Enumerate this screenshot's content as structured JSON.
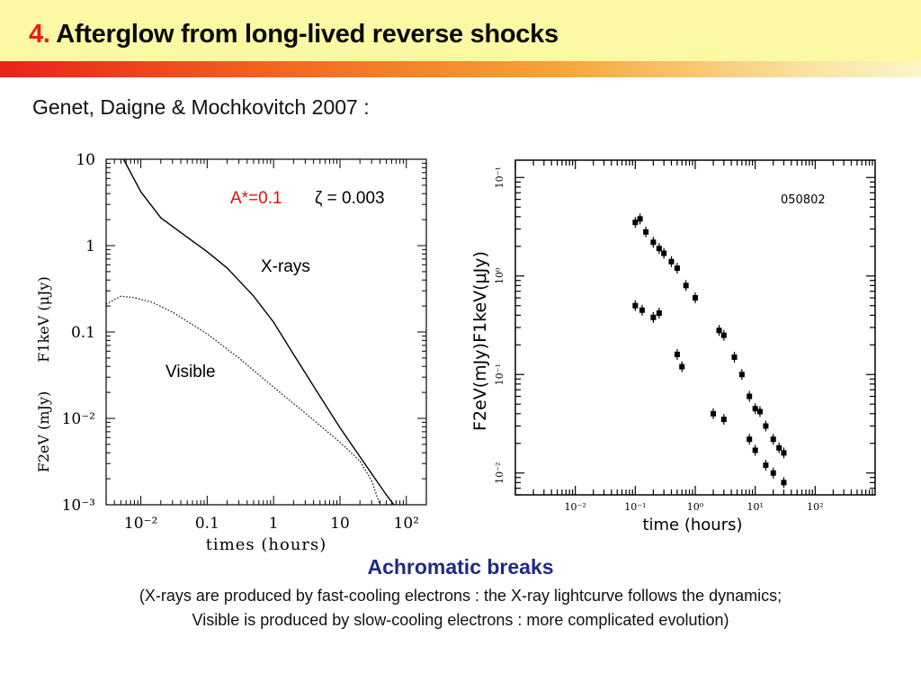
{
  "slide": {
    "title_number": "4.",
    "title_text": "Afterglow from long-lived reverse shocks",
    "citation": "Genet, Daigne & Mochkovitch 2007 :",
    "caption_title": "Achromatic breaks",
    "caption_line1": "(X-rays are produced by fast-cooling electrons : the X-ray lightcurve follows the dynamics;",
    "caption_line2": "Visible is produced by slow-cooling electrons : more complicated evolution)"
  },
  "colors": {
    "title_number": "#e81d1d",
    "header_bg": "#fbf9a4",
    "caption_title": "#1d2a86",
    "annotation_red": "#e01010"
  },
  "chart_data": [
    {
      "type": "line",
      "xscale": "log",
      "yscale": "log",
      "xlim": [
        0.003,
        200
      ],
      "ylim": [
        0.001,
        10
      ],
      "xlabel": "times (hours)",
      "ylabel_top": "F1keV (μJy)",
      "ylabel_bottom": "F2eV (mJy)",
      "xticklabels": [
        "10⁻²",
        "0.1",
        "1",
        "10",
        "10²"
      ],
      "yticklabels": [
        "10",
        "1",
        "0.1",
        "10⁻²",
        "10⁻³"
      ],
      "annotation_red": "A*=0.1",
      "annotation_black": "ζ = 0.003",
      "series": [
        {
          "name": "X-rays",
          "style": "solid",
          "x": [
            0.0055,
            0.01,
            0.02,
            0.05,
            0.1,
            0.2,
            0.5,
            1,
            2,
            5,
            10,
            20,
            50,
            65
          ],
          "y": [
            10,
            4.2,
            2.1,
            1.25,
            0.85,
            0.55,
            0.26,
            0.13,
            0.055,
            0.018,
            0.0078,
            0.0036,
            0.0013,
            0.001
          ]
        },
        {
          "name": "Visible",
          "style": "dotted",
          "x": [
            0.003,
            0.005,
            0.008,
            0.015,
            0.03,
            0.1,
            0.3,
            1,
            3,
            10,
            20,
            30,
            40
          ],
          "y": [
            0.21,
            0.26,
            0.25,
            0.22,
            0.17,
            0.095,
            0.05,
            0.023,
            0.0115,
            0.0053,
            0.0032,
            0.0019,
            0.001
          ]
        }
      ]
    },
    {
      "type": "scatter",
      "xscale": "log",
      "yscale": "log",
      "xlim": [
        0.001,
        1000
      ],
      "ylim": [
        0.0006,
        1.5
      ],
      "xlabel": "time (hours)",
      "ylabel_top": "F1keV(μJy)",
      "ylabel_bottom": "F2eV(mJy)",
      "xticklabels": [
        "10⁻²",
        "10⁻¹",
        "10⁰",
        "10¹",
        "10²"
      ],
      "yticklabels": [
        "10⁻¹",
        "10⁰",
        "10⁻¹",
        "10⁻²"
      ],
      "annotation": "050802",
      "series": [
        {
          "name": "X-rays",
          "x": [
            0.1,
            0.12,
            0.15,
            0.2,
            0.25,
            0.3,
            0.4,
            0.5,
            0.7,
            1.0,
            2.5,
            3.0,
            4.5,
            6.0,
            8.0,
            10,
            12,
            15,
            20,
            25,
            30
          ],
          "y": [
            0.35,
            0.38,
            0.28,
            0.22,
            0.19,
            0.17,
            0.14,
            0.12,
            0.08,
            0.06,
            0.028,
            0.025,
            0.015,
            0.01,
            0.006,
            0.0045,
            0.0042,
            0.003,
            0.0022,
            0.0018,
            0.0016
          ]
        },
        {
          "name": "Visible",
          "x": [
            0.1,
            0.13,
            0.2,
            0.25,
            0.5,
            0.6,
            2.0,
            3.0,
            8.0,
            10,
            15,
            20,
            30
          ],
          "y": [
            0.05,
            0.045,
            0.038,
            0.042,
            0.016,
            0.012,
            0.004,
            0.0035,
            0.0022,
            0.0017,
            0.0012,
            0.001,
            0.0008
          ]
        }
      ]
    }
  ]
}
